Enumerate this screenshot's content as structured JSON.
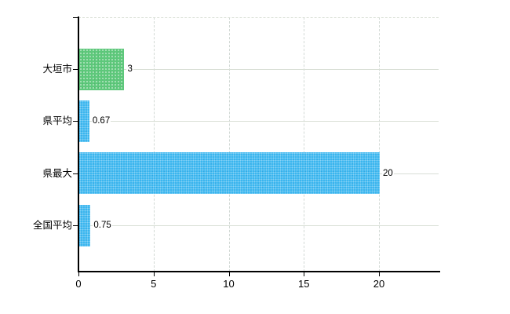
{
  "chart_data": {
    "type": "bar",
    "orientation": "horizontal",
    "title": "",
    "categories": [
      "大垣市",
      "県平均",
      "県最大",
      "全国平均"
    ],
    "values": [
      3,
      0.67,
      20,
      0.75
    ],
    "value_labels": [
      "3",
      "0.67",
      "20",
      "0.75"
    ],
    "series_colors": [
      "#5ec87b",
      "#3ab6ef",
      "#3ab6ef",
      "#3ab6ef"
    ],
    "x_ticks": [
      "0",
      "5",
      "10",
      "15",
      "20"
    ],
    "x_tick_values": [
      0,
      5,
      10,
      15,
      20
    ],
    "xlim": [
      0,
      24
    ],
    "xlabel": "",
    "ylabel": "",
    "grid": "on",
    "legend": "none",
    "colors": {
      "background": "#ffffff",
      "bar_green": "#5ec87b",
      "bar_blue": "#3ab6ef",
      "gridline": "#d9dfd6",
      "axis": "#000000",
      "text": "#000000"
    }
  }
}
